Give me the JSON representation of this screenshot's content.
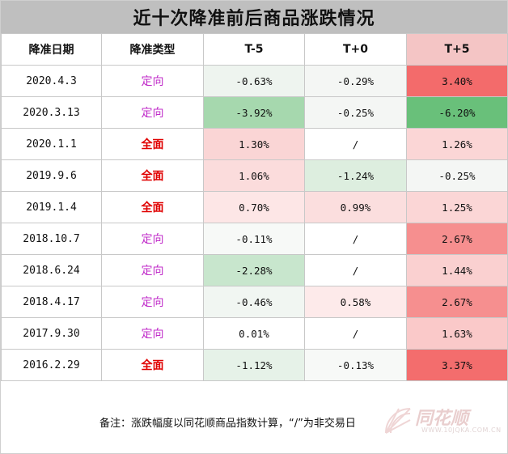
{
  "title": "近十次降准前后商品涨跌情况",
  "headers": [
    "降准日期",
    "降准类型",
    "T-5",
    "T+0",
    "T+5"
  ],
  "rows": [
    {
      "date": "2020.4.3",
      "type": "定向",
      "kind": "dir",
      "t_5": "-0.63%",
      "t0": "-0.29%",
      "t5": "3.40%",
      "c_5": "#eef4ef",
      "c0": "#f4f6f4",
      "c5": "#f36b6b"
    },
    {
      "date": "2020.3.13",
      "type": "定向",
      "kind": "dir",
      "t_5": "-3.92%",
      "t0": "-0.25%",
      "t5": "-6.20%",
      "c_5": "#a6d8ae",
      "c0": "#f4f6f4",
      "c5": "#69c07a"
    },
    {
      "date": "2020.1.1",
      "type": "全面",
      "kind": "all",
      "t_5": "1.30%",
      "t0": "/",
      "t5": "1.26%",
      "c_5": "#fad5d5",
      "c0": "#ffffff",
      "c5": "#fbd6d6"
    },
    {
      "date": "2019.9.6",
      "type": "全面",
      "kind": "all",
      "t_5": "1.06%",
      "t0": "-1.24%",
      "t5": "-0.25%",
      "c_5": "#fbdcdc",
      "c0": "#ddeedf",
      "c5": "#f4f6f4"
    },
    {
      "date": "2019.1.4",
      "type": "全面",
      "kind": "all",
      "t_5": "0.70%",
      "t0": "0.99%",
      "t5": "1.25%",
      "c_5": "#fde6e6",
      "c0": "#fbdede",
      "c5": "#fbd6d6"
    },
    {
      "date": "2018.10.7",
      "type": "定向",
      "kind": "dir",
      "t_5": "-0.11%",
      "t0": "/",
      "t5": "2.67%",
      "c_5": "#f7f9f7",
      "c0": "#ffffff",
      "c5": "#f68f8f"
    },
    {
      "date": "2018.6.24",
      "type": "定向",
      "kind": "dir",
      "t_5": "-2.28%",
      "t0": "/",
      "t5": "1.44%",
      "c_5": "#c8e6cd",
      "c0": "#ffffff",
      "c5": "#fad0d0"
    },
    {
      "date": "2018.4.17",
      "type": "定向",
      "kind": "dir",
      "t_5": "-0.46%",
      "t0": "0.58%",
      "t5": "2.67%",
      "c_5": "#f1f6f2",
      "c0": "#fdeaea",
      "c5": "#f68f8f"
    },
    {
      "date": "2017.9.30",
      "type": "定向",
      "kind": "dir",
      "t_5": "0.01%",
      "t0": "/",
      "t5": "1.63%",
      "c_5": "#ffffff",
      "c0": "#ffffff",
      "c5": "#fac9c9"
    },
    {
      "date": "2016.2.29",
      "type": "全面",
      "kind": "all",
      "t_5": "-1.12%",
      "t0": "-0.13%",
      "t5": "3.37%",
      "c_5": "#e6f2e8",
      "c0": "#f7f9f7",
      "c5": "#f36d6d"
    }
  ],
  "note": "备注：涨跌幅度以同花顺商品指数计算，“/”为非交易日",
  "logo": {
    "brand": "同花顺",
    "site": "WWW.10JQKA.COM.CN",
    "icon": "fan-logo-icon"
  }
}
